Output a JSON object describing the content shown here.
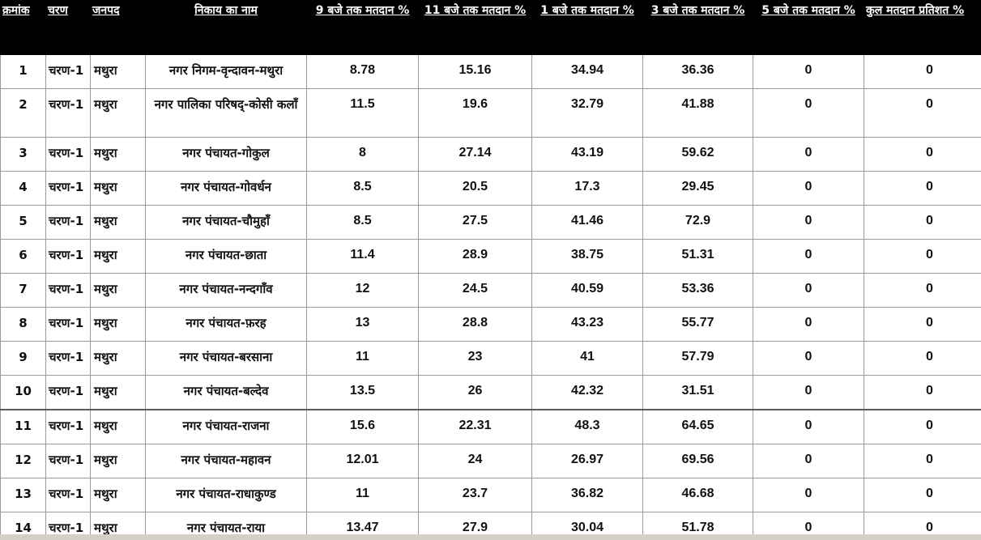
{
  "table": {
    "headers": {
      "sn": "क्रमांक",
      "phase": "चरण",
      "district": "जनपद",
      "body": "निकाय का नाम",
      "t9": "9 बजे तक मतदान %",
      "t11": "11 बजे तक मतदान %",
      "t1": "1 बजे तक मतदान %",
      "t3": "3 बजे तक मतदान %",
      "t5": "5 बजे तक मतदान %",
      "total": "कुल मतदान प्रतिशत %"
    },
    "rows": [
      {
        "sn": "1",
        "phase": "चरण-1",
        "district": "मथुरा",
        "body": "नगर निगम-वृन्दावन-मथुरा",
        "t9": "8.78",
        "t11": "15.16",
        "t1": "34.94",
        "t3": "36.36",
        "t5": "0",
        "total": "0"
      },
      {
        "sn": "2",
        "phase": "चरण-1",
        "district": "मथुरा",
        "body": "नगर पालिका परिषद्-कोसी कलाँ",
        "t9": "11.5",
        "t11": "19.6",
        "t1": "32.79",
        "t3": "41.88",
        "t5": "0",
        "total": "0"
      },
      {
        "sn": "3",
        "phase": "चरण-1",
        "district": "मथुरा",
        "body": "नगर पंचायत-गोकुल",
        "t9": "8",
        "t11": "27.14",
        "t1": "43.19",
        "t3": "59.62",
        "t5": "0",
        "total": "0"
      },
      {
        "sn": "4",
        "phase": "चरण-1",
        "district": "मथुरा",
        "body": "नगर पंचायत-गोवर्धन",
        "t9": "8.5",
        "t11": "20.5",
        "t1": "17.3",
        "t3": "29.45",
        "t5": "0",
        "total": "0"
      },
      {
        "sn": "5",
        "phase": "चरण-1",
        "district": "मथुरा",
        "body": "नगर पंचायत-चौमुहाँ",
        "t9": "8.5",
        "t11": "27.5",
        "t1": "41.46",
        "t3": "72.9",
        "t5": "0",
        "total": "0"
      },
      {
        "sn": "6",
        "phase": "चरण-1",
        "district": "मथुरा",
        "body": "नगर पंचायत-छाता",
        "t9": "11.4",
        "t11": "28.9",
        "t1": "38.75",
        "t3": "51.31",
        "t5": "0",
        "total": "0"
      },
      {
        "sn": "7",
        "phase": "चरण-1",
        "district": "मथुरा",
        "body": "नगर पंचायत-नन्दगाँव",
        "t9": "12",
        "t11": "24.5",
        "t1": "40.59",
        "t3": "53.36",
        "t5": "0",
        "total": "0"
      },
      {
        "sn": "8",
        "phase": "चरण-1",
        "district": "मथुरा",
        "body": "नगर पंचायत-फ़रह",
        "t9": "13",
        "t11": "28.8",
        "t1": "43.23",
        "t3": "55.77",
        "t5": "0",
        "total": "0"
      },
      {
        "sn": "9",
        "phase": "चरण-1",
        "district": "मथुरा",
        "body": "नगर पंचायत-बरसाना",
        "t9": "11",
        "t11": "23",
        "t1": "41",
        "t3": "57.79",
        "t5": "0",
        "total": "0"
      },
      {
        "sn": "10",
        "phase": "चरण-1",
        "district": "मथुरा",
        "body": "नगर पंचायत-बल्देव",
        "t9": "13.5",
        "t11": "26",
        "t1": "42.32",
        "t3": "31.51",
        "t5": "0",
        "total": "0"
      },
      {
        "sn": "11",
        "phase": "चरण-1",
        "district": "मथुरा",
        "body": "नगर पंचायत-राजना",
        "t9": "15.6",
        "t11": "22.31",
        "t1": "48.3",
        "t3": "64.65",
        "t5": "0",
        "total": "0"
      },
      {
        "sn": "12",
        "phase": "चरण-1",
        "district": "मथुरा",
        "body": "नगर पंचायत-महावन",
        "t9": "12.01",
        "t11": "24",
        "t1": "26.97",
        "t3": "69.56",
        "t5": "0",
        "total": "0"
      },
      {
        "sn": "13",
        "phase": "चरण-1",
        "district": "मथुरा",
        "body": "नगर पंचायत-राधाकुण्ड",
        "t9": "11",
        "t11": "23.7",
        "t1": "36.82",
        "t3": "46.68",
        "t5": "0",
        "total": "0"
      },
      {
        "sn": "14",
        "phase": "चरण-1",
        "district": "मथुरा",
        "body": "नगर पंचायत-राया",
        "t9": "13.47",
        "t11": "27.9",
        "t1": "30.04",
        "t3": "51.78",
        "t5": "0",
        "total": "0"
      }
    ]
  }
}
